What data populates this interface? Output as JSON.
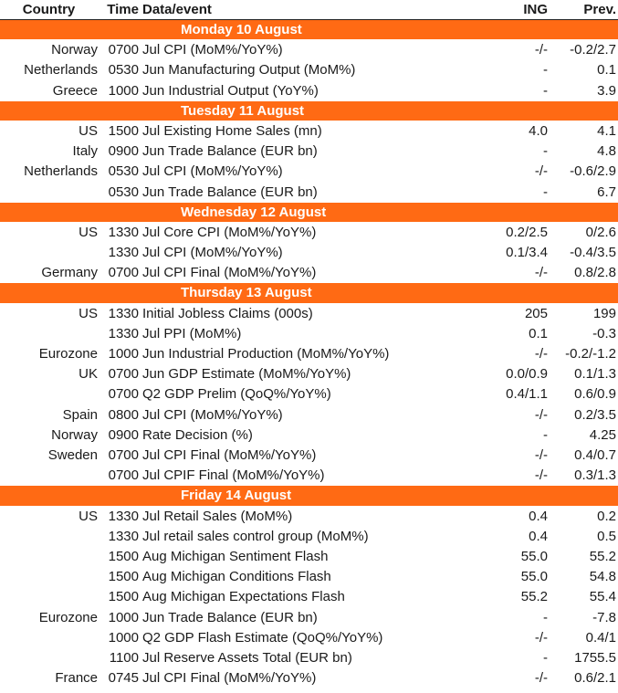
{
  "header": {
    "country": "Country",
    "time": "Time",
    "event": "Data/event",
    "ing": "ING",
    "prev": "Prev."
  },
  "accent": "#ff6a14",
  "days": [
    {
      "label": "Monday 10 August",
      "rows": [
        {
          "country": "Norway",
          "time": "0700",
          "event": "Jul CPI (MoM%/YoY%)",
          "ing": "-/-",
          "prev": "-0.2/2.7"
        },
        {
          "country": "Netherlands",
          "time": "0530",
          "event": "Jun Manufacturing Output (MoM%)",
          "ing": "-",
          "prev": "0.1"
        },
        {
          "country": "Greece",
          "time": "1000",
          "event": "Jun Industrial Output (YoY%)",
          "ing": "-",
          "prev": "3.9"
        }
      ]
    },
    {
      "label": "Tuesday 11 August",
      "rows": [
        {
          "country": "US",
          "time": "1500",
          "event": "Jul Existing Home Sales (mn)",
          "ing": "4.0",
          "prev": "4.1"
        },
        {
          "country": "Italy",
          "time": "0900",
          "event": "Jun Trade Balance (EUR bn)",
          "ing": "-",
          "prev": "4.8"
        },
        {
          "country": "Netherlands",
          "time": "0530",
          "event": "Jul CPI (MoM%/YoY%)",
          "ing": "-/-",
          "prev": "-0.6/2.9"
        },
        {
          "country": "",
          "time": "0530",
          "event": "Jun Trade Balance (EUR bn)",
          "ing": "-",
          "prev": "6.7"
        }
      ]
    },
    {
      "label": "Wednesday 12 August",
      "rows": [
        {
          "country": "US",
          "time": "1330",
          "event": "Jul Core CPI (MoM%/YoY%)",
          "ing": "0.2/2.5",
          "prev": "0/2.6"
        },
        {
          "country": "",
          "time": "1330",
          "event": "Jul CPI  (MoM%/YoY%)",
          "ing": "0.1/3.4",
          "prev": "-0.4/3.5"
        },
        {
          "country": "Germany",
          "time": "0700",
          "event": "Jul CPI Final (MoM%/YoY%)",
          "ing": "-/-",
          "prev": "0.8/2.8"
        }
      ]
    },
    {
      "label": "Thursday 13 August",
      "rows": [
        {
          "country": "US",
          "time": "1330",
          "event": "Initial Jobless Claims (000s)",
          "ing": "205",
          "prev": "199"
        },
        {
          "country": "",
          "time": "1330",
          "event": "Jul PPI (MoM%)",
          "ing": "0.1",
          "prev": "-0.3"
        },
        {
          "country": "Eurozone",
          "time": "1000",
          "event": "Jun Industrial Production (MoM%/YoY%)",
          "ing": "-/-",
          "prev": "-0.2/-1.2"
        },
        {
          "country": "UK",
          "time": "0700",
          "event": "Jun GDP Estimate (MoM%/YoY%)",
          "ing": "0.0/0.9",
          "prev": "0.1/1.3"
        },
        {
          "country": "",
          "time": "0700",
          "event": "Q2 GDP Prelim (QoQ%/YoY%)",
          "ing": "0.4/1.1",
          "prev": "0.6/0.9"
        },
        {
          "country": "Spain",
          "time": "0800",
          "event": "Jul CPI (MoM%/YoY%)",
          "ing": "-/-",
          "prev": "0.2/3.5"
        },
        {
          "country": "Norway",
          "time": "0900",
          "event": "Rate Decision (%)",
          "ing": "-",
          "prev": "4.25"
        },
        {
          "country": "Sweden",
          "time": "0700",
          "event": "Jul CPI Final (MoM%/YoY%)",
          "ing": "-/-",
          "prev": "0.4/0.7"
        },
        {
          "country": "",
          "time": "0700",
          "event": "Jul CPIF Final (MoM%/YoY%)",
          "ing": "-/-",
          "prev": "0.3/1.3"
        }
      ]
    },
    {
      "label": "Friday 14 August",
      "rows": [
        {
          "country": "US",
          "time": "1330",
          "event": "Jul Retail Sales (MoM%)",
          "ing": "0.4",
          "prev": "0.2"
        },
        {
          "country": "",
          "time": "1330",
          "event": "Jul retail sales control group (MoM%)",
          "ing": "0.4",
          "prev": "0.5"
        },
        {
          "country": "",
          "time": "1500",
          "event": "Aug Michigan Sentiment Flash",
          "ing": "55.0",
          "prev": "55.2"
        },
        {
          "country": "",
          "time": "1500",
          "event": "Aug Michigan Conditions Flash",
          "ing": "55.0",
          "prev": "54.8"
        },
        {
          "country": "",
          "time": "1500",
          "event": "Aug Michigan Expectations Flash",
          "ing": "55.2",
          "prev": "55.4"
        },
        {
          "country": "Eurozone",
          "time": "1000",
          "event": "Jun Trade Balance (EUR bn)",
          "ing": "-",
          "prev": "-7.8"
        },
        {
          "country": "",
          "time": "1000",
          "event": "Q2 GDP Flash Estimate (QoQ%/YoY%)",
          "ing": "-/-",
          "prev": "0.4/1"
        },
        {
          "country": "",
          "time": "1100",
          "event": "Jul Reserve Assets Total (EUR bn)",
          "ing": "-",
          "prev": "1755.5"
        },
        {
          "country": "France",
          "time": "0745",
          "event": "Jul CPI Final (MoM%/YoY%)",
          "ing": "-/-",
          "prev": "0.6/2.1"
        }
      ]
    }
  ]
}
